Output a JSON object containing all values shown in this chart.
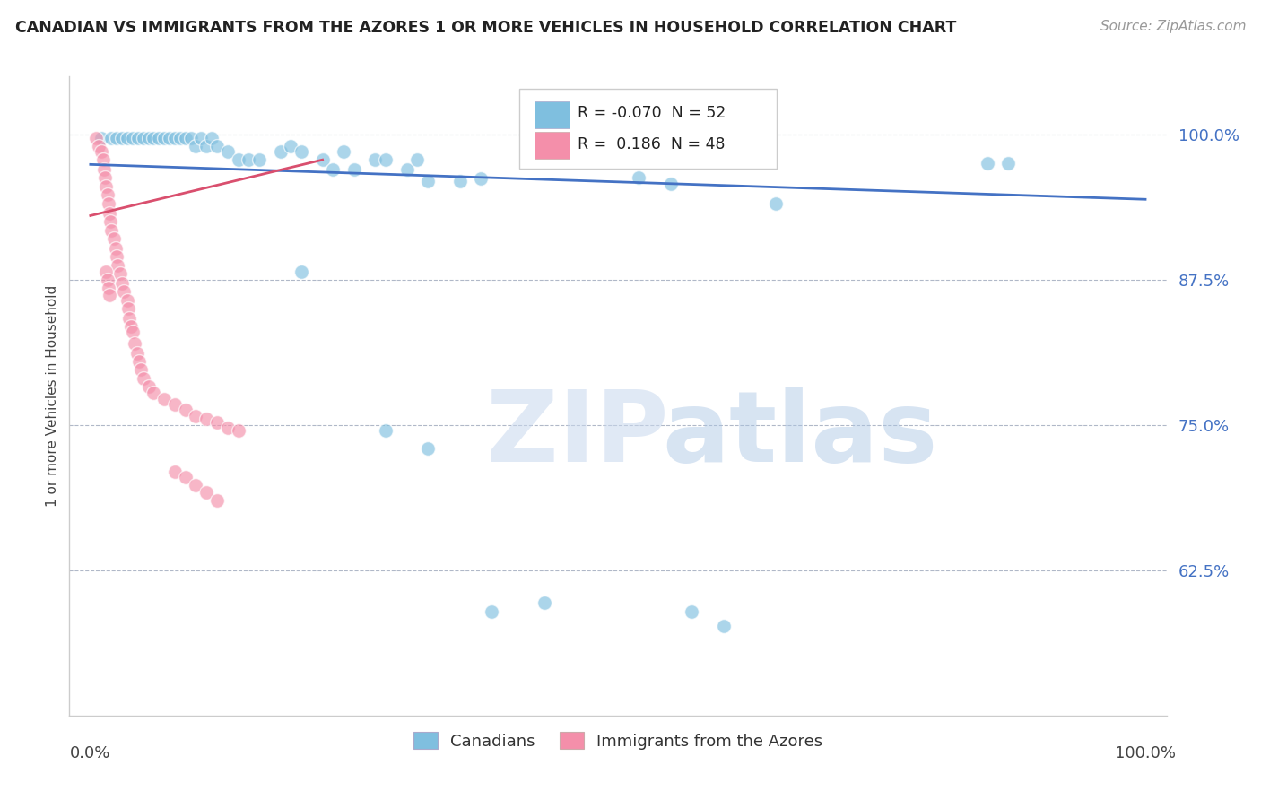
{
  "title": "CANADIAN VS IMMIGRANTS FROM THE AZORES 1 OR MORE VEHICLES IN HOUSEHOLD CORRELATION CHART",
  "source": "Source: ZipAtlas.com",
  "ylabel": "1 or more Vehicles in Household",
  "ytick_labels": [
    "62.5%",
    "75.0%",
    "87.5%",
    "100.0%"
  ],
  "ytick_values": [
    0.625,
    0.75,
    0.875,
    1.0
  ],
  "ylim": [
    0.5,
    1.05
  ],
  "xlim": [
    -0.02,
    1.02
  ],
  "legend_blue_R": "-0.070",
  "legend_blue_N": "52",
  "legend_pink_R": "0.186",
  "legend_pink_N": "48",
  "blue_color": "#7fbfdf",
  "pink_color": "#f48faa",
  "trend_blue_color": "#4472c4",
  "trend_pink_color": "#d94f6e",
  "blue_trend_x": [
    0.0,
    1.0
  ],
  "blue_trend_y": [
    0.974,
    0.944
  ],
  "pink_trend_x": [
    0.0,
    0.22
  ],
  "pink_trend_y": [
    0.93,
    0.978
  ],
  "blue_points": [
    [
      0.01,
      0.997
    ],
    [
      0.02,
      0.997
    ],
    [
      0.025,
      0.997
    ],
    [
      0.03,
      0.997
    ],
    [
      0.035,
      0.997
    ],
    [
      0.04,
      0.997
    ],
    [
      0.045,
      0.997
    ],
    [
      0.05,
      0.997
    ],
    [
      0.055,
      0.997
    ],
    [
      0.06,
      0.997
    ],
    [
      0.065,
      0.997
    ],
    [
      0.07,
      0.997
    ],
    [
      0.075,
      0.997
    ],
    [
      0.08,
      0.997
    ],
    [
      0.085,
      0.997
    ],
    [
      0.09,
      0.997
    ],
    [
      0.095,
      0.997
    ],
    [
      0.1,
      0.99
    ],
    [
      0.105,
      0.997
    ],
    [
      0.11,
      0.99
    ],
    [
      0.115,
      0.997
    ],
    [
      0.12,
      0.99
    ],
    [
      0.13,
      0.985
    ],
    [
      0.14,
      0.978
    ],
    [
      0.15,
      0.978
    ],
    [
      0.16,
      0.978
    ],
    [
      0.18,
      0.985
    ],
    [
      0.19,
      0.99
    ],
    [
      0.2,
      0.985
    ],
    [
      0.22,
      0.978
    ],
    [
      0.23,
      0.97
    ],
    [
      0.24,
      0.985
    ],
    [
      0.25,
      0.97
    ],
    [
      0.27,
      0.978
    ],
    [
      0.28,
      0.978
    ],
    [
      0.3,
      0.97
    ],
    [
      0.31,
      0.978
    ],
    [
      0.32,
      0.96
    ],
    [
      0.35,
      0.96
    ],
    [
      0.37,
      0.962
    ],
    [
      0.2,
      0.882
    ],
    [
      0.28,
      0.745
    ],
    [
      0.32,
      0.73
    ],
    [
      0.38,
      0.59
    ],
    [
      0.43,
      0.597
    ],
    [
      0.52,
      0.963
    ],
    [
      0.55,
      0.957
    ],
    [
      0.57,
      0.59
    ],
    [
      0.6,
      0.577
    ],
    [
      0.65,
      0.94
    ],
    [
      0.85,
      0.975
    ],
    [
      0.87,
      0.975
    ]
  ],
  "pink_points": [
    [
      0.005,
      0.997
    ],
    [
      0.008,
      0.99
    ],
    [
      0.01,
      0.985
    ],
    [
      0.012,
      0.978
    ],
    [
      0.013,
      0.97
    ],
    [
      0.014,
      0.963
    ],
    [
      0.015,
      0.955
    ],
    [
      0.016,
      0.948
    ],
    [
      0.017,
      0.94
    ],
    [
      0.018,
      0.932
    ],
    [
      0.019,
      0.925
    ],
    [
      0.02,
      0.917
    ],
    [
      0.022,
      0.91
    ],
    [
      0.024,
      0.902
    ],
    [
      0.025,
      0.895
    ],
    [
      0.026,
      0.887
    ],
    [
      0.028,
      0.88
    ],
    [
      0.03,
      0.872
    ],
    [
      0.032,
      0.865
    ],
    [
      0.035,
      0.857
    ],
    [
      0.036,
      0.85
    ],
    [
      0.037,
      0.842
    ],
    [
      0.038,
      0.835
    ],
    [
      0.04,
      0.83
    ],
    [
      0.042,
      0.82
    ],
    [
      0.044,
      0.812
    ],
    [
      0.046,
      0.805
    ],
    [
      0.048,
      0.798
    ],
    [
      0.05,
      0.79
    ],
    [
      0.055,
      0.783
    ],
    [
      0.06,
      0.778
    ],
    [
      0.07,
      0.772
    ],
    [
      0.08,
      0.768
    ],
    [
      0.09,
      0.763
    ],
    [
      0.1,
      0.758
    ],
    [
      0.11,
      0.755
    ],
    [
      0.12,
      0.752
    ],
    [
      0.13,
      0.748
    ],
    [
      0.14,
      0.745
    ],
    [
      0.015,
      0.882
    ],
    [
      0.016,
      0.875
    ],
    [
      0.017,
      0.868
    ],
    [
      0.018,
      0.862
    ],
    [
      0.08,
      0.71
    ],
    [
      0.09,
      0.705
    ],
    [
      0.1,
      0.698
    ],
    [
      0.11,
      0.692
    ],
    [
      0.12,
      0.685
    ]
  ]
}
